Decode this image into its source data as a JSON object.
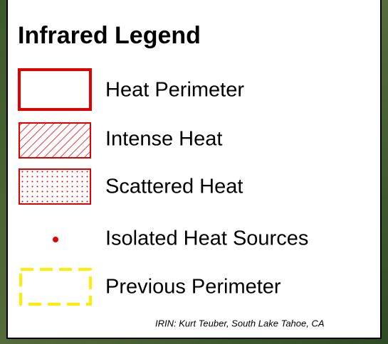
{
  "legend": {
    "title": "Infrared Legend",
    "items": [
      {
        "label": "Heat Perimeter"
      },
      {
        "label": "Intense Heat"
      },
      {
        "label": "Scattered Heat"
      },
      {
        "label": "Isolated Heat Sources"
      },
      {
        "label": "Previous Perimeter"
      }
    ],
    "credit": "IRIN: Kurt Teuber, South Lake Tahoe, CA"
  }
}
